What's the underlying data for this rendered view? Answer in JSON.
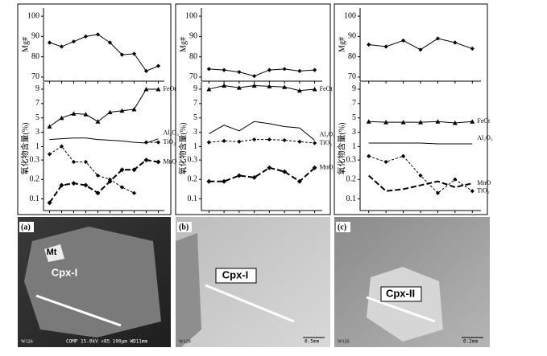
{
  "chart_data": [
    {
      "type": "line",
      "ylabel": "Mg#",
      "ylim": [
        68,
        104
      ],
      "yticks": [
        70,
        80,
        90,
        100
      ],
      "series": [
        {
          "values": [
            87,
            85,
            87.5,
            90,
            91,
            87,
            81,
            81.5,
            73,
            75.5
          ],
          "marker": "diamond",
          "dash": "solid",
          "width": 1
        }
      ]
    },
    {
      "type": "line",
      "ylabel": "氧化物含量(%)",
      "ylim": [
        0.5,
        10
      ],
      "yticks": [
        1,
        3,
        5,
        7,
        9
      ],
      "series": [
        {
          "name": "FeOt",
          "values": [
            3.8,
            5,
            5.6,
            5.5,
            4.5,
            5.8,
            6,
            6.2,
            9,
            9
          ],
          "marker": "triangle",
          "dash": "solid",
          "width": 1
        },
        {
          "name": "Al₂O₃",
          "values": [
            2,
            2.1,
            2.2,
            2.2,
            2,
            1.9,
            1.8,
            1.6,
            1.5,
            2.1
          ],
          "marker": "none",
          "dash": "solid",
          "width": 1
        },
        {
          "name": "TiO₂",
          "values": [
            null,
            null,
            null,
            null,
            null,
            null,
            null,
            null,
            1.6,
            1.6
          ],
          "marker": "diamond",
          "dash": "dashed",
          "width": 1
        }
      ]
    },
    {
      "type": "line",
      "ylim": [
        0.04,
        0.35
      ],
      "yticks": [
        0.3,
        0.2,
        0.1
      ],
      "series": [
        {
          "values": [
            0.33,
            0.37,
            0.29,
            0.29,
            0.22,
            0.2,
            0.16,
            0.13,
            null,
            null
          ],
          "marker": "diamond",
          "dash": "dashed",
          "width": 1
        },
        {
          "name": "MnO",
          "values": [
            0.08,
            0.17,
            0.18,
            0.17,
            0.13,
            0.19,
            0.25,
            0.25,
            0.3,
            0.29
          ],
          "marker": "diamond",
          "dash": "longdash",
          "width": 2
        }
      ]
    },
    {
      "type": "line",
      "ylabel": "Mg#",
      "ylim": [
        68,
        104
      ],
      "yticks": [
        70,
        80,
        90,
        100
      ],
      "series": [
        {
          "values": [
            74,
            73.5,
            72.5,
            70.5,
            73.5,
            74,
            73,
            73.5
          ],
          "marker": "diamond",
          "dash": "solid",
          "width": 1
        }
      ]
    },
    {
      "type": "line",
      "ylabel": "氧化物含量(%)",
      "ylim": [
        0.5,
        10
      ],
      "yticks": [
        1,
        3,
        5,
        7,
        9
      ],
      "series": [
        {
          "name": "FeOt",
          "values": [
            9,
            9.5,
            9.2,
            9.5,
            9.4,
            9.3,
            8.8,
            9
          ],
          "marker": "triangle",
          "dash": "solid",
          "width": 1
        },
        {
          "name": "Al₂O₃",
          "values": [
            2.8,
            4,
            3.2,
            4.5,
            4.2,
            3.8,
            3.6,
            1.9
          ],
          "marker": "none",
          "dash": "solid",
          "width": 1
        },
        {
          "name": "TiO₂",
          "values": [
            1.6,
            1.8,
            1.7,
            2,
            2,
            1.9,
            1.7,
            1.5
          ],
          "marker": "diamond",
          "dash": "dashed",
          "width": 1
        }
      ]
    },
    {
      "type": "line",
      "ylim": [
        0.04,
        0.35
      ],
      "yticks": [
        0.3,
        0.2,
        0.1
      ],
      "series": [
        {
          "name": "MnO",
          "values": [
            0.19,
            0.19,
            0.22,
            0.21,
            0.26,
            0.24,
            0.19,
            0.26
          ],
          "marker": "diamond",
          "dash": "longdash",
          "width": 2
        }
      ]
    },
    {
      "type": "line",
      "ylabel": "Mg#",
      "ylim": [
        68,
        104
      ],
      "yticks": [
        70,
        80,
        90,
        100
      ],
      "series": [
        {
          "values": [
            86,
            85,
            88,
            83.5,
            89,
            87,
            84
          ],
          "marker": "diamond",
          "dash": "solid",
          "width": 1
        }
      ]
    },
    {
      "type": "line",
      "ylabel": "氧化物含量(%)",
      "ylim": [
        0.5,
        10
      ],
      "yticks": [
        1,
        3,
        5,
        7,
        9
      ],
      "series": [
        {
          "name": "FeOt",
          "values": [
            4.5,
            4.4,
            4.4,
            4.4,
            4.5,
            4.3,
            4.5
          ],
          "marker": "triangle",
          "dash": "solid",
          "width": 1
        },
        {
          "name": "Al₂O₃",
          "values": [
            1.5,
            1.5,
            1.5,
            1.5,
            1.4,
            1.4,
            1.4
          ],
          "marker": "none",
          "dash": "solid",
          "width": 1
        }
      ]
    },
    {
      "type": "line",
      "ylim": [
        0.04,
        0.35
      ],
      "yticks": [
        0.3,
        0.2,
        0.1
      ],
      "series": [
        {
          "name": "MnO",
          "values": [
            0.22,
            0.14,
            0.15,
            0.17,
            0.19,
            0.16,
            0.18
          ],
          "marker": "none",
          "dash": "longdash",
          "width": 2
        },
        {
          "name": "TiO₂",
          "values": [
            0.32,
            0.29,
            0.32,
            0.22,
            0.13,
            0.2,
            0.14
          ],
          "marker": "diamond",
          "dash": "dashed",
          "width": 1
        }
      ]
    }
  ],
  "panels": [
    {
      "label": "(a)",
      "mineral": "Cpx-I",
      "inset": "Mt",
      "sample": "W126",
      "scale": "COMP 15.0kV ×85 100μm WD11mm"
    },
    {
      "label": "(b)",
      "mineral": "Cpx-I",
      "sample": "W129",
      "scale": "0.5mm"
    },
    {
      "label": "(c)",
      "mineral": "Cpx-II",
      "sample": "W126",
      "scale": "0.2mm"
    }
  ]
}
